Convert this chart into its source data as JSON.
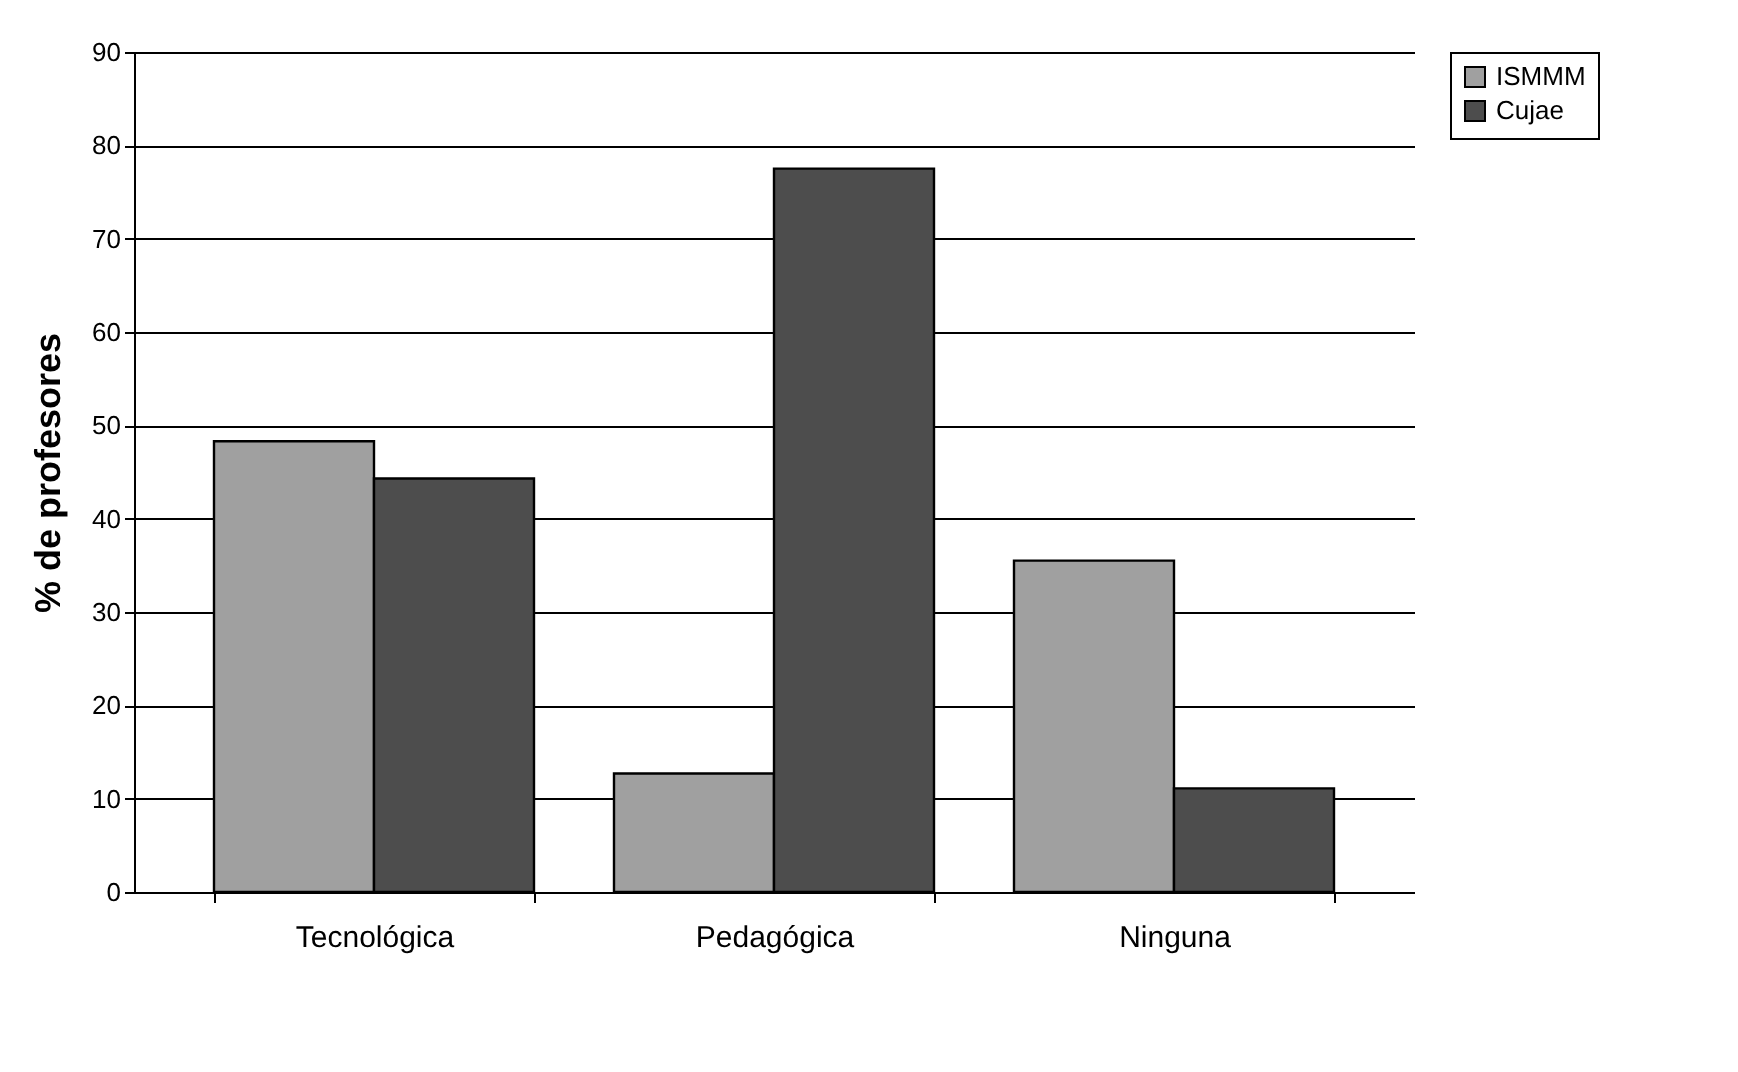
{
  "chart_data": {
    "type": "bar",
    "ylabel": "% de profesores",
    "categories": [
      "Tecnológica",
      "Pedagógica",
      "Ninguna"
    ],
    "series": [
      {
        "name": "ISMMM",
        "color": "#a0a0a0",
        "values": [
          48.3,
          12.7,
          35.5
        ]
      },
      {
        "name": "Cujae",
        "color": "#4d4d4d",
        "values": [
          44.3,
          77.5,
          11.1
        ]
      }
    ],
    "ylim": [
      0,
      90
    ],
    "yticks": [
      0,
      10,
      20,
      30,
      40,
      50,
      60,
      70,
      80,
      90
    ],
    "grid": "y",
    "legend": "right"
  }
}
